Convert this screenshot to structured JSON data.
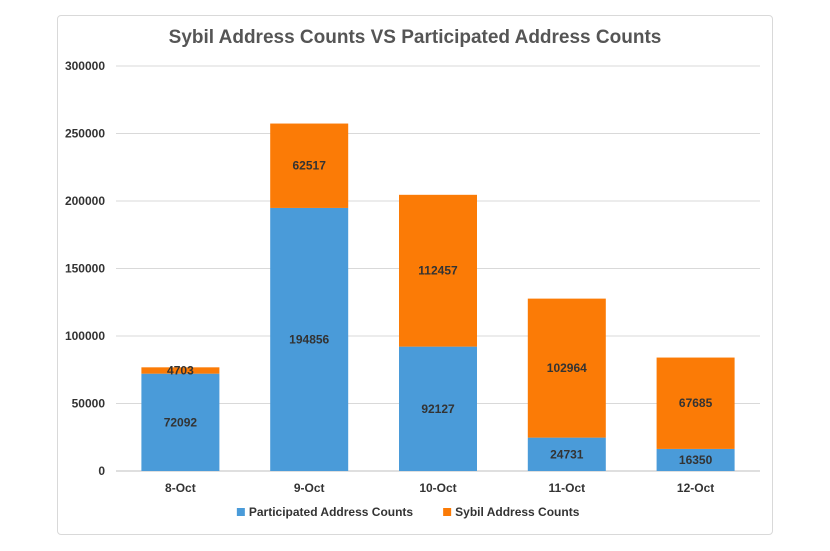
{
  "chart_data": {
    "type": "bar",
    "stacked": true,
    "title": "Sybil Address Counts VS Participated Address Counts",
    "xlabel": "",
    "ylabel": "",
    "categories": [
      "8-Oct",
      "9-Oct",
      "10-Oct",
      "11-Oct",
      "12-Oct"
    ],
    "series": [
      {
        "name": "Participated Address Counts",
        "color": "#4a9bd9",
        "values": [
          72092,
          194856,
          92127,
          24731,
          16350
        ]
      },
      {
        "name": "Sybil Address Counts",
        "color": "#fb7b06",
        "values": [
          4703,
          62517,
          112457,
          102964,
          67685
        ]
      }
    ],
    "ylim": [
      0,
      300000
    ],
    "yticks": [
      0,
      50000,
      100000,
      150000,
      200000,
      250000,
      300000
    ],
    "grid": true,
    "legend_position": "bottom"
  }
}
